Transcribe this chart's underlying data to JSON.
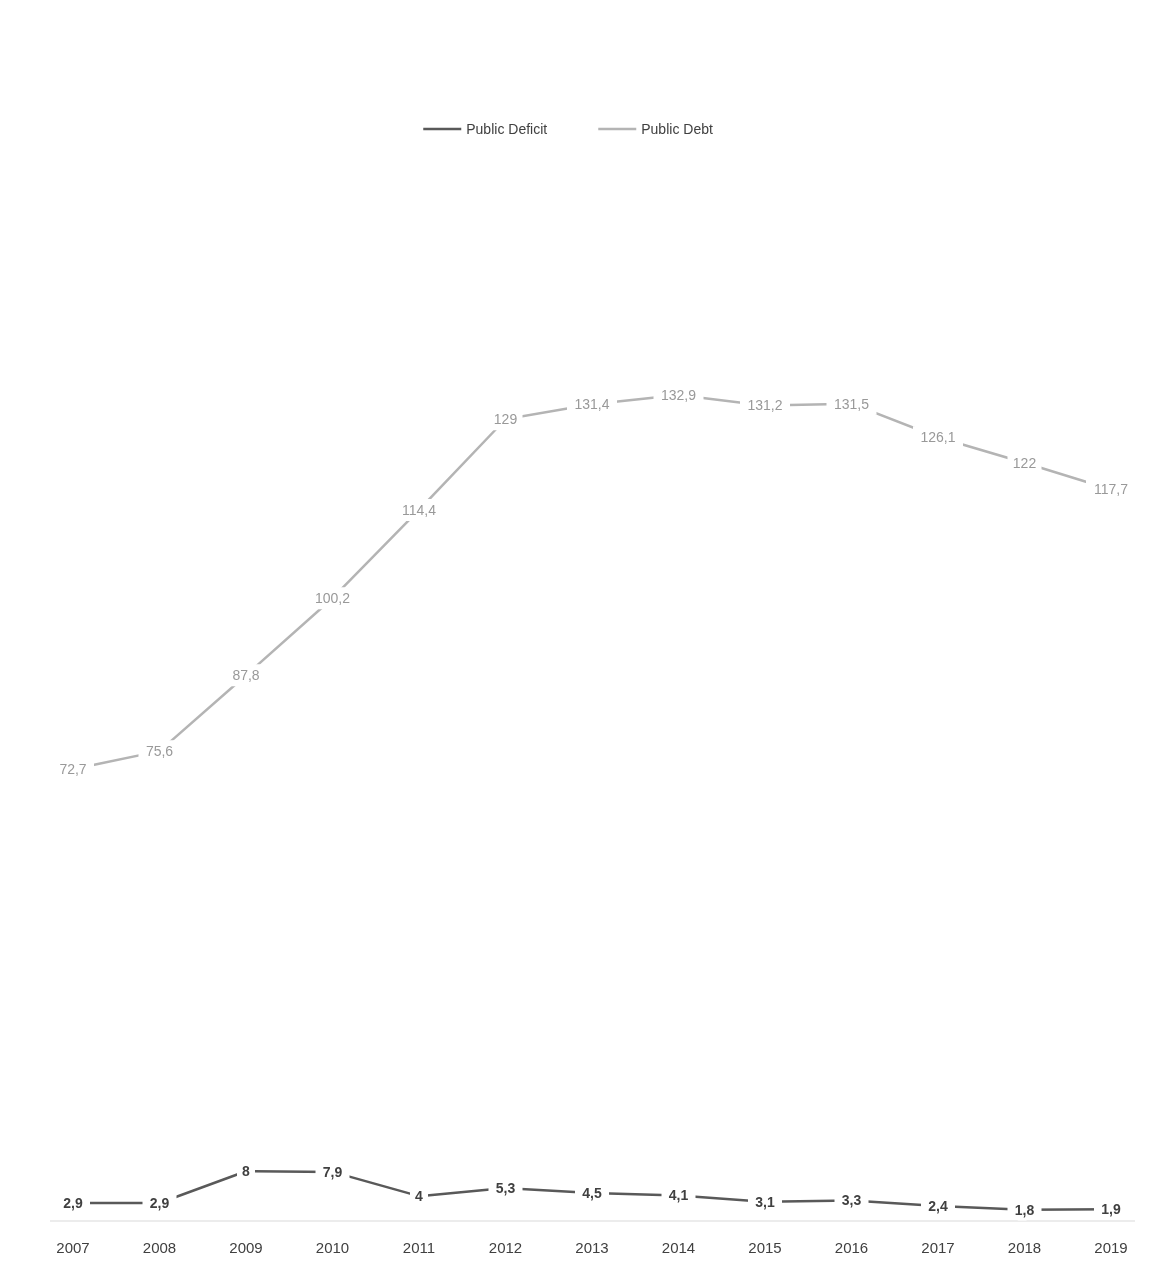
{
  "chart_data": {
    "type": "line",
    "categories": [
      "2007",
      "2008",
      "2009",
      "2010",
      "2011",
      "2012",
      "2013",
      "2014",
      "2015",
      "2016",
      "2017",
      "2018",
      "2019"
    ],
    "series": [
      {
        "name": "Public Deficit",
        "color": "#595959",
        "values": [
          2.9,
          2.9,
          8,
          7.9,
          4,
          5.3,
          4.5,
          4.1,
          3.1,
          3.3,
          2.4,
          1.8,
          1.9
        ],
        "value_labels": [
          "2,9",
          "2,9",
          "8",
          "7,9",
          "4",
          "5,3",
          "4,5",
          "4,1",
          "3,1",
          "3,3",
          "2,4",
          "1,8",
          "1,9"
        ]
      },
      {
        "name": "Public Debt",
        "color": "#b4b4b4",
        "values": [
          72.7,
          75.6,
          87.8,
          100.2,
          114.4,
          129,
          131.4,
          132.9,
          131.2,
          131.5,
          126.1,
          122,
          117.7
        ],
        "value_labels": [
          "72,7",
          "75,6",
          "87,8",
          "100,2",
          "114,4",
          "129",
          "131,4",
          "132,9",
          "131,2",
          "131,5",
          "126,1",
          "122",
          "117,7"
        ]
      }
    ],
    "legend": "top",
    "line_style": "solid",
    "marker": "none",
    "grid": false
  }
}
